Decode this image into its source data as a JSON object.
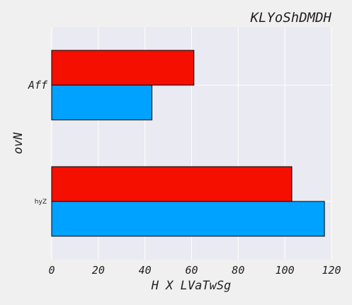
{
  "chart_data": {
    "type": "bar",
    "orientation": "horizontal",
    "title": "KLYoShDMDH",
    "xlabel": "H X LVaTwSg",
    "ylabel": "ovN",
    "categories": [
      "hyZ",
      "Aff"
    ],
    "series": [
      {
        "values": [
          117,
          43
        ],
        "color": "#00a2ff"
      },
      {
        "values": [
          103,
          61
        ],
        "color": "#f50f00"
      }
    ],
    "xlim": [
      0,
      120
    ],
    "xticks": [
      0,
      20,
      40,
      60,
      80,
      100,
      120
    ],
    "grid": true,
    "plot_background": "#eaeaf2",
    "edge_color": "#000000"
  }
}
